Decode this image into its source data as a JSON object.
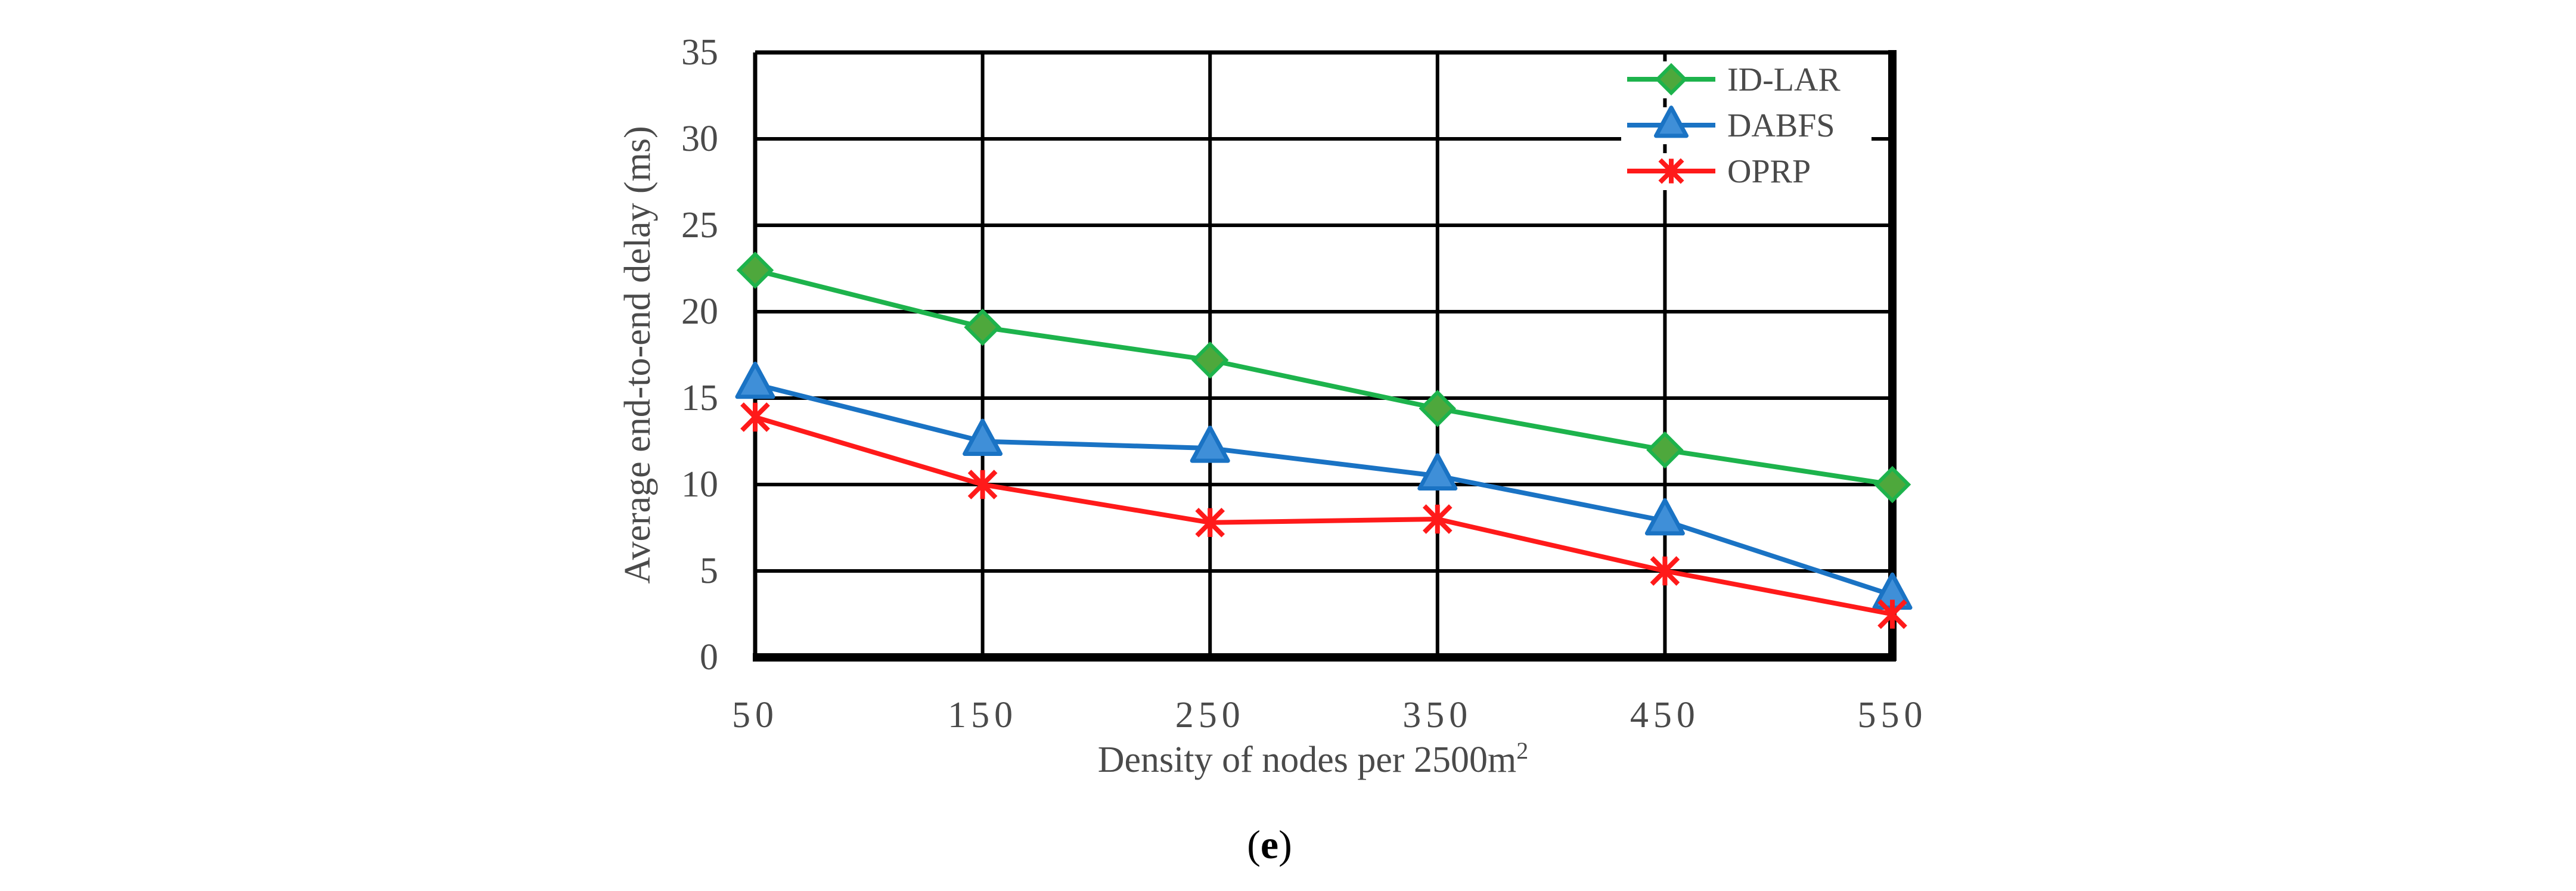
{
  "chart_data": {
    "type": "line",
    "title": "",
    "xlabel": "Density of nodes per 2500m",
    "xlabel_superscript": "2",
    "ylabel": "Average end-to-end delay (ms)",
    "categories": [
      "50",
      "150",
      "250",
      "350",
      "450",
      "550"
    ],
    "ylim": [
      0,
      35
    ],
    "yticks": [
      0,
      5,
      10,
      15,
      20,
      25,
      30,
      35
    ],
    "grid": true,
    "legend": "top-right",
    "series": [
      {
        "name": "ID-LAR",
        "marker": "diamond",
        "color": "#1db34c",
        "marker_color": "#4ea83c",
        "values": [
          22.4,
          19.1,
          17.2,
          14.4,
          12.0,
          10.0
        ]
      },
      {
        "name": "DABFS",
        "marker": "triangle",
        "color": "#1a73c4",
        "marker_color": "#3f8fd8",
        "values": [
          15.8,
          12.5,
          12.1,
          10.5,
          7.9,
          3.6
        ]
      },
      {
        "name": "OPRP",
        "marker": "x-star",
        "color": "#ff1a1a",
        "marker_color": "#ff1a1a",
        "values": [
          13.9,
          10.0,
          7.8,
          8.0,
          5.0,
          2.5
        ]
      }
    ]
  },
  "caption": {
    "open_paren": "(",
    "letter": "e",
    "close_paren": ")"
  }
}
